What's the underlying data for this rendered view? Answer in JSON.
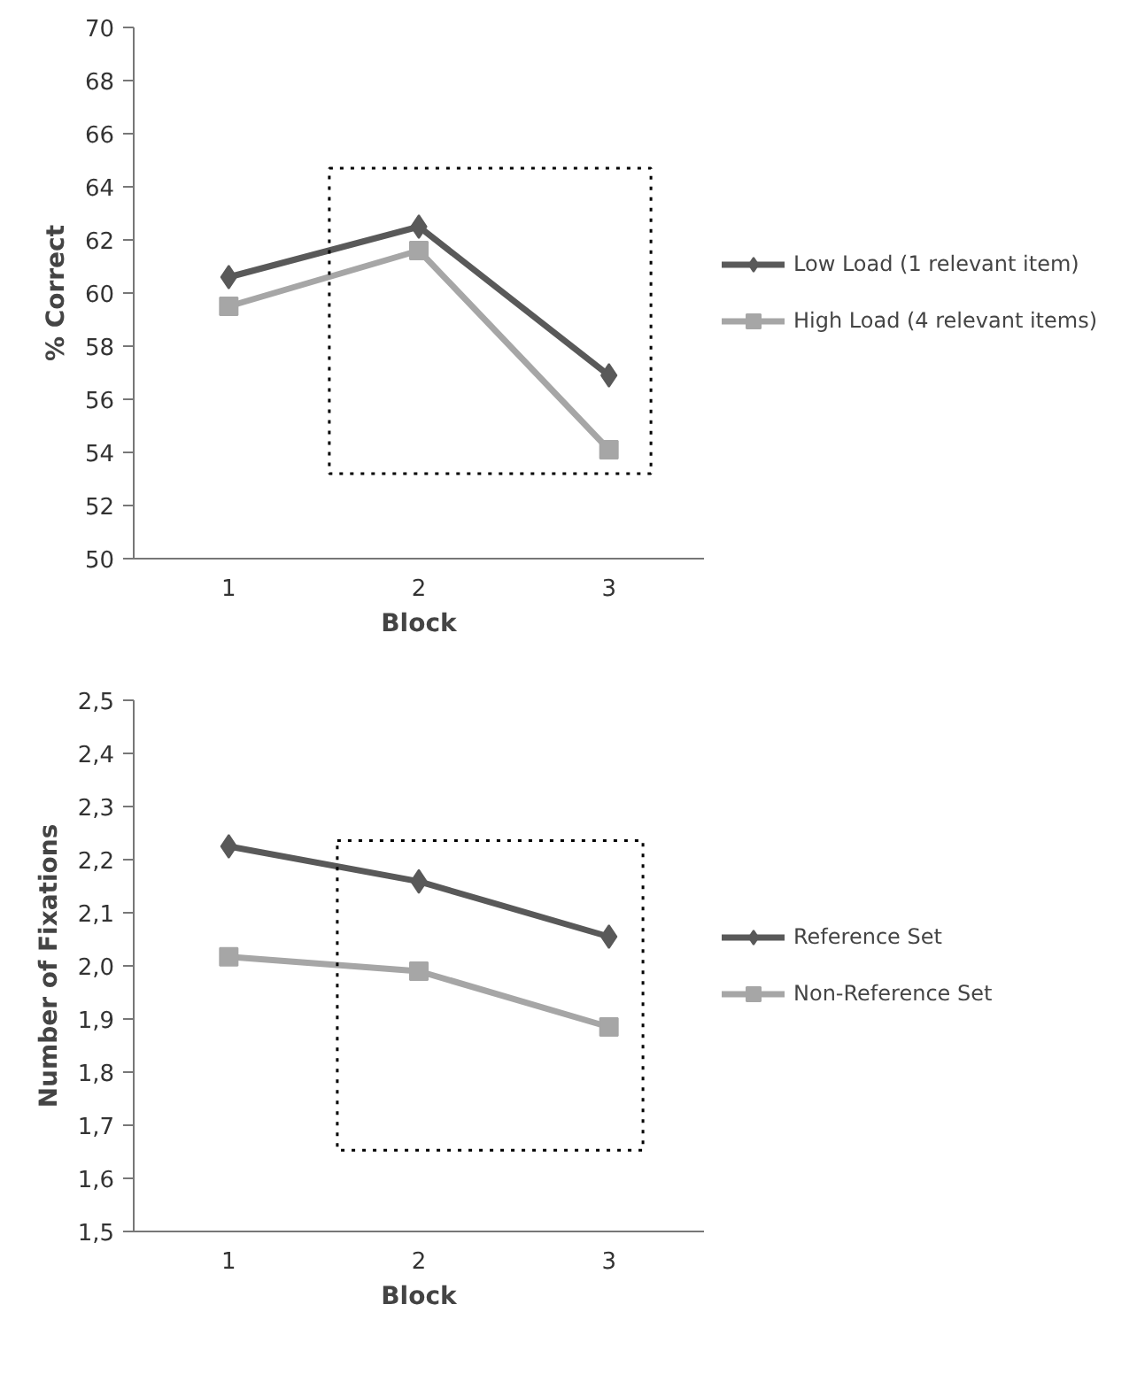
{
  "chart_data": [
    {
      "type": "line",
      "categories": [
        "1",
        "2",
        "3"
      ],
      "xlabel": "Block",
      "ylabel": "% Correct",
      "ylim": [
        50,
        70
      ],
      "yticks": [
        50,
        52,
        54,
        56,
        58,
        60,
        62,
        64,
        66,
        68,
        70
      ],
      "grid": false,
      "legend": "right",
      "line_style": "solid",
      "series": [
        {
          "name": "Low Load (1 relevant item)",
          "color": "#595959",
          "marker": "diamond",
          "values": [
            60.6,
            62.5,
            56.9
          ]
        },
        {
          "name": "High Load (4 relevant items)",
          "color": "#a6a6a6",
          "marker": "square",
          "values": [
            59.5,
            61.6,
            54.1
          ]
        }
      ]
    },
    {
      "type": "line",
      "categories": [
        "1",
        "2",
        "3"
      ],
      "xlabel": "Block",
      "ylabel": "Number of Fixations",
      "ylim": [
        1.5,
        2.5
      ],
      "yticks": [
        {
          "value": 1.5,
          "label": "1,5"
        },
        {
          "value": 1.6,
          "label": "1,6"
        },
        {
          "value": 1.7,
          "label": "1,7"
        },
        {
          "value": 1.8,
          "label": "1,8"
        },
        {
          "value": 1.9,
          "label": "1,9"
        },
        {
          "value": 2.0,
          "label": "2,0"
        },
        {
          "value": 2.1,
          "label": "2,1"
        },
        {
          "value": 2.2,
          "label": "2,2"
        },
        {
          "value": 2.3,
          "label": "2,3"
        },
        {
          "value": 2.4,
          "label": "2,4"
        },
        {
          "value": 2.5,
          "label": "2,5"
        }
      ],
      "grid": false,
      "legend": "right",
      "line_style": "solid",
      "series": [
        {
          "name": "Reference Set",
          "color": "#595959",
          "marker": "diamond",
          "values": [
            2.225,
            2.159,
            2.055
          ]
        },
        {
          "name": "Non-Reference Set",
          "color": "#a6a6a6",
          "marker": "square",
          "values": [
            2.017,
            1.99,
            1.885
          ]
        }
      ]
    }
  ]
}
